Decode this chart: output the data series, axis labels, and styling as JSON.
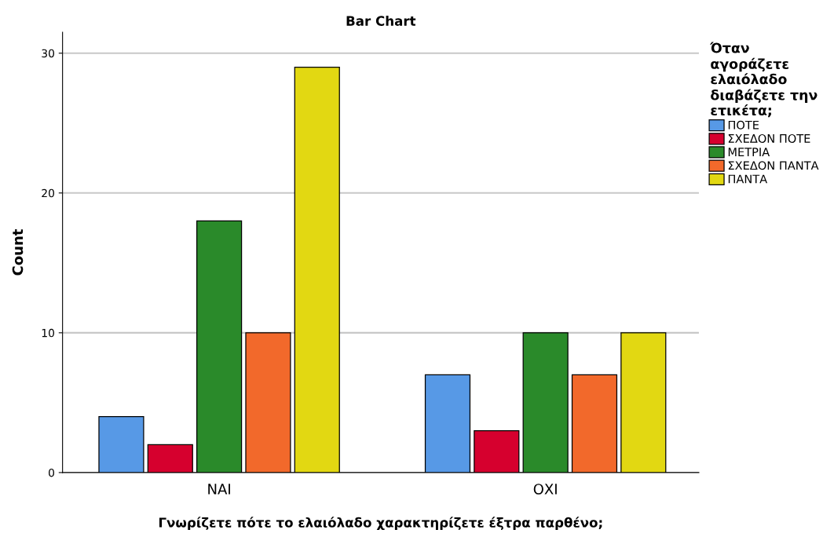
{
  "chart_data": {
    "type": "bar",
    "title": "Bar Chart",
    "xlabel": "Γνωρίζετε πότε το ελαιόλαδο χαρακτηρίζετε έξτρα παρθένο;",
    "ylabel": "Count",
    "legend_title": "Όταν\nαγοράζετε\nελαιόλαδο\nδιαβάζετε την\nετικέτα;",
    "categories": [
      "ΝΑΙ",
      "ΟΧΙ"
    ],
    "series": [
      {
        "name": "ΠΟΤΕ",
        "color": "#5799e6",
        "values": [
          4,
          7
        ]
      },
      {
        "name": "ΣΧΕΔΟΝ ΠΟΤΕ",
        "color": "#d6002e",
        "values": [
          2,
          3
        ]
      },
      {
        "name": "ΜΕΤΡΙΑ",
        "color": "#2a8a2a",
        "values": [
          18,
          10
        ]
      },
      {
        "name": "ΣΧΕΔΟΝ ΠΑΝΤΑ",
        "color": "#f2692b",
        "values": [
          10,
          7
        ]
      },
      {
        "name": "ΠΑΝΤΑ",
        "color": "#e2d812",
        "values": [
          29,
          10
        ]
      }
    ],
    "ylim": [
      0,
      31.5
    ],
    "yticks": [
      0,
      10,
      20,
      30
    ],
    "grid": "y",
    "legend": "right"
  }
}
